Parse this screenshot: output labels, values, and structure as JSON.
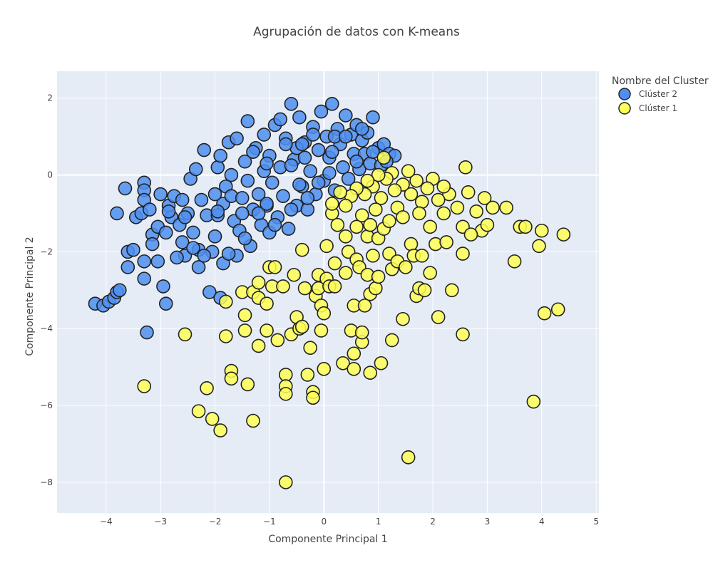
{
  "chart_data": {
    "type": "scatter",
    "title": "Agrupación de datos con K-means",
    "xlabel": "Componente Principal 1",
    "ylabel": "Componente Principal 2",
    "xlim": [
      -4.9,
      5.05
    ],
    "ylim": [
      -8.8,
      2.7
    ],
    "xticks": [
      -4,
      -3,
      -2,
      -1,
      0,
      1,
      2,
      3,
      4,
      5
    ],
    "yticks": [
      -8,
      -6,
      -4,
      -2,
      0,
      2
    ],
    "grid": true,
    "legend": {
      "title": "Nombre del Cluster",
      "placement": "top-right",
      "entries": [
        {
          "name": "Clúster 2",
          "color": "#4F8FF0"
        },
        {
          "name": "Clúster 1",
          "color": "#FFFF55"
        }
      ]
    },
    "series": [
      {
        "name": "Clúster 2",
        "color": "#4F8FF0",
        "points": [
          [
            -4.2,
            -3.35
          ],
          [
            -4.05,
            -3.4
          ],
          [
            -3.95,
            -3.3
          ],
          [
            -3.85,
            -3.2
          ],
          [
            -3.8,
            -3.05
          ],
          [
            -3.75,
            -3.0
          ],
          [
            -3.8,
            -1.0
          ],
          [
            -3.65,
            -0.35
          ],
          [
            -3.6,
            -2.0
          ],
          [
            -3.6,
            -2.4
          ],
          [
            -3.5,
            -1.95
          ],
          [
            -3.45,
            -1.1
          ],
          [
            -3.35,
            -1.0
          ],
          [
            -3.3,
            -0.2
          ],
          [
            -3.3,
            -0.4
          ],
          [
            -3.3,
            -0.65
          ],
          [
            -3.3,
            -2.25
          ],
          [
            -3.3,
            -2.7
          ],
          [
            -3.25,
            -4.1
          ],
          [
            -3.2,
            -0.9
          ],
          [
            -3.15,
            -1.55
          ],
          [
            -3.15,
            -1.8
          ],
          [
            -3.05,
            -2.25
          ],
          [
            -3.05,
            -1.35
          ],
          [
            -3.0,
            -0.5
          ],
          [
            -2.95,
            -2.9
          ],
          [
            -2.9,
            -3.35
          ],
          [
            -2.9,
            -1.5
          ],
          [
            -2.85,
            -0.8
          ],
          [
            -2.8,
            -1.1
          ],
          [
            -2.75,
            -0.55
          ],
          [
            -2.65,
            -1.3
          ],
          [
            -2.6,
            -1.75
          ],
          [
            -2.6,
            -0.65
          ],
          [
            -2.55,
            -2.1
          ],
          [
            -2.5,
            -1.0
          ],
          [
            -2.45,
            -0.1
          ],
          [
            -2.4,
            -1.5
          ],
          [
            -2.35,
            0.15
          ],
          [
            -2.3,
            -2.4
          ],
          [
            -2.3,
            -1.95
          ],
          [
            -2.25,
            -0.65
          ],
          [
            -2.2,
            0.65
          ],
          [
            -2.15,
            -1.05
          ],
          [
            -2.1,
            -3.05
          ],
          [
            -2.05,
            -2.0
          ],
          [
            -2.0,
            -1.6
          ],
          [
            -1.95,
            -1.05
          ],
          [
            -1.95,
            0.2
          ],
          [
            -1.9,
            -3.2
          ],
          [
            -1.85,
            -2.3
          ],
          [
            -1.85,
            -0.75
          ],
          [
            -1.8,
            -0.3
          ],
          [
            -1.75,
            0.85
          ],
          [
            -1.7,
            -0.55
          ],
          [
            -1.65,
            -1.2
          ],
          [
            -1.6,
            -2.1
          ],
          [
            -1.55,
            -1.45
          ],
          [
            -1.5,
            -0.6
          ],
          [
            -1.45,
            0.35
          ],
          [
            -1.4,
            -0.15
          ],
          [
            -1.4,
            1.4
          ],
          [
            -1.35,
            -1.85
          ],
          [
            -1.3,
            -0.9
          ],
          [
            -1.25,
            0.7
          ],
          [
            -1.2,
            -0.5
          ],
          [
            -1.15,
            -1.3
          ],
          [
            -1.1,
            0.1
          ],
          [
            -1.1,
            1.05
          ],
          [
            -1.05,
            -0.8
          ],
          [
            -1.0,
            -1.5
          ],
          [
            -1.0,
            0.5
          ],
          [
            -0.95,
            -0.2
          ],
          [
            -0.9,
            1.3
          ],
          [
            -0.85,
            -1.1
          ],
          [
            -0.8,
            0.2
          ],
          [
            -0.75,
            -0.55
          ],
          [
            -0.7,
            0.95
          ],
          [
            -0.65,
            -1.4
          ],
          [
            -0.6,
            1.85
          ],
          [
            -0.55,
            0.4
          ],
          [
            -0.5,
            -0.8
          ],
          [
            -0.45,
            1.5
          ],
          [
            -0.4,
            -0.3
          ],
          [
            -0.35,
            0.85
          ],
          [
            -0.3,
            -0.9
          ],
          [
            -0.25,
            0.1
          ],
          [
            -0.2,
            1.25
          ],
          [
            -0.15,
            -0.5
          ],
          [
            -0.1,
            0.65
          ],
          [
            -0.05,
            1.65
          ],
          [
            0.0,
            -0.15
          ],
          [
            0.05,
            1.0
          ],
          [
            0.1,
            0.45
          ],
          [
            0.15,
            1.85
          ],
          [
            0.2,
            -0.4
          ],
          [
            0.25,
            1.2
          ],
          [
            0.3,
            0.8
          ],
          [
            0.35,
            0.2
          ],
          [
            0.4,
            1.55
          ],
          [
            0.45,
            -0.1
          ],
          [
            0.5,
            1.05
          ],
          [
            0.55,
            0.55
          ],
          [
            0.6,
            1.3
          ],
          [
            0.65,
            0.15
          ],
          [
            0.7,
            0.9
          ],
          [
            0.75,
            0.55
          ],
          [
            0.8,
            1.1
          ],
          [
            0.85,
            0.3
          ],
          [
            0.9,
            1.5
          ],
          [
            1.0,
            0.7
          ],
          [
            1.05,
            0.25
          ],
          [
            1.1,
            0.8
          ],
          [
            1.2,
            0.55
          ],
          [
            1.3,
            0.5
          ],
          [
            -1.6,
            0.95
          ],
          [
            -1.3,
            0.6
          ],
          [
            -0.8,
            1.45
          ],
          [
            -0.5,
            0.7
          ],
          [
            -0.2,
            1.05
          ],
          [
            0.2,
            1.0
          ],
          [
            0.4,
            1.0
          ],
          [
            -0.7,
            0.8
          ],
          [
            -0.4,
            0.8
          ],
          [
            -1.9,
            0.5
          ],
          [
            -1.7,
            0.0
          ],
          [
            -2.0,
            -0.5
          ],
          [
            -2.4,
            -1.9
          ],
          [
            -2.2,
            -2.1
          ],
          [
            -1.5,
            -1.0
          ],
          [
            -1.2,
            -1.0
          ],
          [
            -0.9,
            -1.3
          ],
          [
            -0.6,
            -0.9
          ],
          [
            -0.3,
            -0.6
          ],
          [
            -0.1,
            -0.2
          ],
          [
            0.1,
            0.05
          ],
          [
            -1.75,
            -2.05
          ],
          [
            -2.7,
            -2.15
          ],
          [
            -1.05,
            0.3
          ],
          [
            -0.6,
            0.25
          ],
          [
            -0.35,
            0.45
          ],
          [
            0.6,
            0.35
          ],
          [
            0.9,
            0.6
          ],
          [
            -1.45,
            -1.65
          ],
          [
            -2.85,
            -0.95
          ],
          [
            -2.55,
            -1.1
          ],
          [
            -1.95,
            -0.95
          ],
          [
            -1.05,
            -0.75
          ],
          [
            -0.45,
            -0.25
          ],
          [
            0.15,
            0.6
          ],
          [
            0.7,
            1.2
          ],
          [
            1.15,
            0.35
          ]
        ]
      },
      {
        "name": "Clúster 1",
        "color": "#FFFF55",
        "points": [
          [
            -3.3,
            -5.5
          ],
          [
            -2.55,
            -4.15
          ],
          [
            -2.3,
            -6.15
          ],
          [
            -2.15,
            -5.55
          ],
          [
            -2.05,
            -6.35
          ],
          [
            -1.9,
            -6.65
          ],
          [
            -1.8,
            -4.2
          ],
          [
            -1.8,
            -3.3
          ],
          [
            -1.7,
            -5.1
          ],
          [
            -1.7,
            -5.3
          ],
          [
            -1.5,
            -3.05
          ],
          [
            -1.45,
            -3.65
          ],
          [
            -1.45,
            -4.05
          ],
          [
            -1.4,
            -5.45
          ],
          [
            -1.3,
            -6.4
          ],
          [
            -1.3,
            -3.05
          ],
          [
            -1.2,
            -2.8
          ],
          [
            -1.2,
            -3.2
          ],
          [
            -1.2,
            -4.45
          ],
          [
            -1.05,
            -4.05
          ],
          [
            -1.05,
            -3.35
          ],
          [
            -1.0,
            -2.4
          ],
          [
            -0.95,
            -2.9
          ],
          [
            -0.9,
            -2.4
          ],
          [
            -0.85,
            -4.3
          ],
          [
            -0.75,
            -2.9
          ],
          [
            -0.7,
            -5.2
          ],
          [
            -0.7,
            -5.5
          ],
          [
            -0.7,
            -5.7
          ],
          [
            -0.7,
            -8.0
          ],
          [
            -0.6,
            -4.15
          ],
          [
            -0.55,
            -2.6
          ],
          [
            -0.5,
            -3.7
          ],
          [
            -0.45,
            -4.0
          ],
          [
            -0.4,
            -3.95
          ],
          [
            -0.4,
            -1.95
          ],
          [
            -0.35,
            -2.95
          ],
          [
            -0.3,
            -5.2
          ],
          [
            -0.25,
            -4.5
          ],
          [
            -0.2,
            -5.65
          ],
          [
            -0.2,
            -5.8
          ],
          [
            -0.15,
            -3.15
          ],
          [
            -0.1,
            -2.95
          ],
          [
            -0.1,
            -2.6
          ],
          [
            -0.05,
            -4.05
          ],
          [
            -0.05,
            -3.4
          ],
          [
            0.0,
            -3.6
          ],
          [
            0.05,
            -2.7
          ],
          [
            0.0,
            -5.05
          ],
          [
            0.05,
            -1.85
          ],
          [
            0.1,
            -2.9
          ],
          [
            0.15,
            -1.0
          ],
          [
            0.2,
            -2.3
          ],
          [
            0.2,
            -2.9
          ],
          [
            0.35,
            -4.9
          ],
          [
            0.4,
            -1.6
          ],
          [
            0.4,
            -2.55
          ],
          [
            0.45,
            -2.0
          ],
          [
            0.5,
            -4.05
          ],
          [
            0.55,
            -3.4
          ],
          [
            0.55,
            -4.65
          ],
          [
            0.55,
            -5.05
          ],
          [
            0.6,
            -1.35
          ],
          [
            0.6,
            -2.2
          ],
          [
            0.65,
            -2.4
          ],
          [
            0.7,
            -4.35
          ],
          [
            0.7,
            -4.1
          ],
          [
            0.75,
            -3.4
          ],
          [
            0.8,
            -1.6
          ],
          [
            0.8,
            -2.6
          ],
          [
            0.85,
            -3.1
          ],
          [
            0.85,
            -5.15
          ],
          [
            0.9,
            -2.1
          ],
          [
            0.95,
            -2.95
          ],
          [
            1.0,
            -1.65
          ],
          [
            1.0,
            -2.65
          ],
          [
            1.05,
            -4.9
          ],
          [
            1.1,
            -1.4
          ],
          [
            1.2,
            -2.05
          ],
          [
            1.25,
            -2.45
          ],
          [
            1.25,
            -4.3
          ],
          [
            1.35,
            -2.25
          ],
          [
            1.45,
            -3.75
          ],
          [
            1.5,
            -2.4
          ],
          [
            1.55,
            -7.35
          ],
          [
            1.6,
            -1.8
          ],
          [
            1.65,
            -2.1
          ],
          [
            1.7,
            -3.15
          ],
          [
            1.75,
            -2.95
          ],
          [
            1.8,
            -2.1
          ],
          [
            1.85,
            -3.0
          ],
          [
            1.95,
            -2.55
          ],
          [
            2.05,
            -1.8
          ],
          [
            2.1,
            -3.7
          ],
          [
            2.35,
            -3.0
          ],
          [
            2.55,
            -4.15
          ],
          [
            2.55,
            -2.05
          ],
          [
            2.9,
            -1.45
          ],
          [
            3.5,
            -2.25
          ],
          [
            3.6,
            -1.35
          ],
          [
            3.7,
            -1.35
          ],
          [
            3.95,
            -1.85
          ],
          [
            4.0,
            -1.45
          ],
          [
            4.05,
            -3.6
          ],
          [
            3.85,
            -5.9
          ],
          [
            4.3,
            -3.5
          ],
          [
            4.4,
            -1.55
          ],
          [
            3.35,
            -0.85
          ],
          [
            3.1,
            -0.85
          ],
          [
            2.95,
            -0.6
          ],
          [
            2.8,
            -0.95
          ],
          [
            2.65,
            -0.45
          ],
          [
            2.6,
            0.2
          ],
          [
            2.45,
            -0.85
          ],
          [
            2.3,
            -0.5
          ],
          [
            2.2,
            -0.3
          ],
          [
            2.1,
            -0.65
          ],
          [
            2.0,
            -0.1
          ],
          [
            1.9,
            -0.35
          ],
          [
            1.8,
            -0.7
          ],
          [
            1.7,
            -0.15
          ],
          [
            1.6,
            -0.5
          ],
          [
            1.55,
            0.1
          ],
          [
            1.45,
            -0.25
          ],
          [
            1.35,
            -0.85
          ],
          [
            1.3,
            -0.4
          ],
          [
            1.25,
            0.05
          ],
          [
            1.15,
            -0.1
          ],
          [
            1.1,
            0.45
          ],
          [
            1.05,
            -0.6
          ],
          [
            1.0,
            0.0
          ],
          [
            0.95,
            -0.9
          ],
          [
            0.9,
            -0.3
          ],
          [
            0.8,
            -0.15
          ],
          [
            0.75,
            -0.5
          ],
          [
            0.7,
            -1.05
          ],
          [
            0.6,
            -0.35
          ],
          [
            0.5,
            -0.55
          ],
          [
            0.4,
            -0.8
          ],
          [
            0.3,
            -0.45
          ],
          [
            0.25,
            -1.3
          ],
          [
            0.15,
            -0.75
          ],
          [
            2.25,
            -1.75
          ],
          [
            2.55,
            -1.35
          ],
          [
            2.7,
            -1.55
          ],
          [
            3.0,
            -1.3
          ],
          [
            1.45,
            -1.1
          ],
          [
            1.95,
            -1.35
          ],
          [
            2.2,
            -1.0
          ],
          [
            1.75,
            -1.0
          ],
          [
            1.2,
            -1.2
          ],
          [
            0.85,
            -1.3
          ]
        ]
      }
    ]
  }
}
